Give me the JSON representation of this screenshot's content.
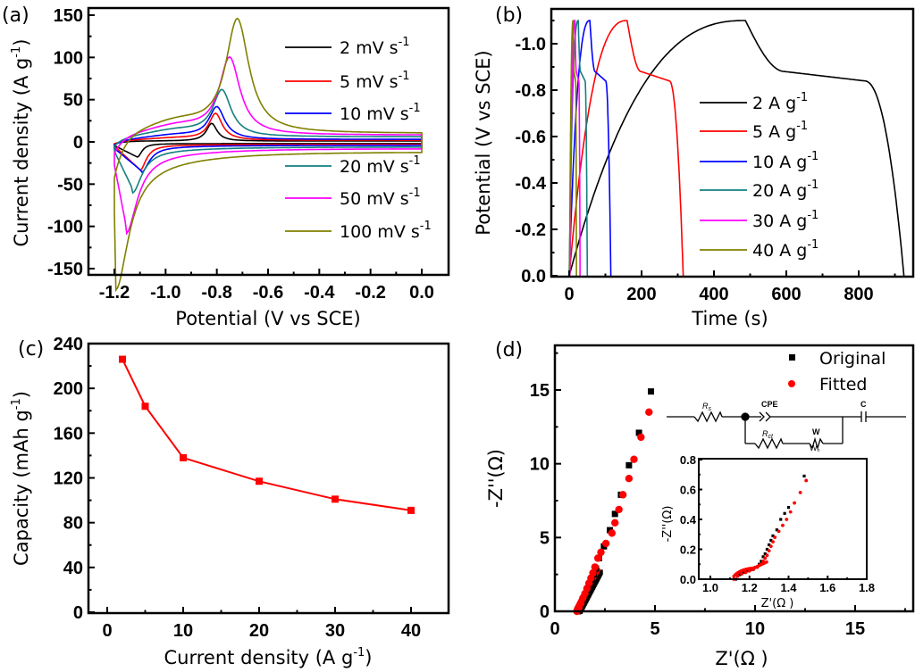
{
  "figure": {
    "panels": [
      "(a)",
      "(b)",
      "(c)",
      "(d)"
    ]
  },
  "chart_data": [
    {
      "id": "a",
      "type": "line",
      "panel_label": "(a)",
      "xlabel": "Potential (V vs  SCE)",
      "ylabel": "Current density (A g⁻¹)",
      "ylabel_main": "Current density (A g",
      "ylabel_sup": "-1",
      "xlim": [
        -1.2,
        0.0
      ],
      "ylim": [
        -150,
        150
      ],
      "xticks": [
        "-1.2",
        "-1.0",
        "-0.8",
        "-0.6",
        "-0.4",
        "-0.2",
        "0.0"
      ],
      "xtick_values": [
        -1.2,
        -1.0,
        -0.8,
        -0.6,
        -0.4,
        -0.2,
        0.0
      ],
      "yticks": [
        "150",
        "100",
        "50",
        "0",
        "-50",
        "-100",
        "-150"
      ],
      "ytick_values": [
        150,
        100,
        50,
        0,
        -50,
        -100,
        -150
      ],
      "legend_position": "right",
      "series": [
        {
          "name": "2 mV s",
          "sup": "-1",
          "color": "#000000",
          "anodic_peak": [
            -0.82,
            22
          ],
          "cathodic_peak": [
            -1.11,
            -18
          ],
          "plateau_anodic": 1,
          "plateau_cathodic": -2,
          "start": -8
        },
        {
          "name": "5 mV s",
          "sup": "-1",
          "color": "#ff0000",
          "anodic_peak": [
            -0.805,
            33
          ],
          "cathodic_peak": [
            -1.1,
            -33
          ],
          "plateau_anodic": 2,
          "plateau_cathodic": -3,
          "start": -9
        },
        {
          "name": "10 mV s",
          "sup": "-1",
          "color": "#0000ff",
          "anodic_peak": [
            -0.8,
            40
          ],
          "cathodic_peak": [
            -1.095,
            -34
          ],
          "plateau_anodic": 3,
          "plateau_cathodic": -4,
          "start": -14
        },
        {
          "name": "20 mV s",
          "sup": "-1",
          "color": "#138080",
          "anodic_peak": [
            -0.78,
            60
          ],
          "cathodic_peak": [
            -1.13,
            -55
          ],
          "plateau_anodic": 6,
          "plateau_cathodic": -6,
          "start": -20
        },
        {
          "name": "50 mV s",
          "sup": "-1",
          "color": "#ff00ff",
          "anodic_peak": [
            -0.75,
            99
          ],
          "cathodic_peak": [
            -1.155,
            -98
          ],
          "plateau_anodic": 8,
          "plateau_cathodic": -8,
          "start": -50
        },
        {
          "name": "100 mV s",
          "sup": "-1",
          "color": "#808000",
          "anodic_peak": [
            -0.72,
            145
          ],
          "cathodic_peak": [
            -1.195,
            -152
          ],
          "plateau_anodic": 10,
          "plateau_cathodic": -12,
          "start": -150
        }
      ]
    },
    {
      "id": "b",
      "type": "line",
      "panel_label": "(b)",
      "xlabel": "Time (s)",
      "ylabel": "Potential (V vs  SCE)",
      "xlim": [
        -40,
        960
      ],
      "ylim": [
        0.0,
        -1.1
      ],
      "xticks": [
        "0",
        "200",
        "400",
        "600",
        "800"
      ],
      "xtick_values": [
        0,
        200,
        400,
        600,
        800
      ],
      "yticks": [
        "-1.0",
        "-0.8",
        "-0.6",
        "-0.4",
        "-0.2",
        "0.0"
      ],
      "ytick_values": [
        -1.0,
        -0.8,
        -0.6,
        -0.4,
        -0.2,
        0.0
      ],
      "legend_position": "center-right",
      "series": [
        {
          "name": "2 A g",
          "sup": "-1",
          "color": "#000000",
          "charge_end_s": 487,
          "discharge_end_s": 925
        },
        {
          "name": "5 A g",
          "sup": "-1",
          "color": "#ff0000",
          "charge_end_s": 160,
          "discharge_end_s": 315
        },
        {
          "name": "10 A g",
          "sup": "-1",
          "color": "#0000ff",
          "charge_end_s": 57,
          "discharge_end_s": 115
        },
        {
          "name": "20 A g",
          "sup": "-1",
          "color": "#138080",
          "charge_end_s": 25,
          "discharge_end_s": 50
        },
        {
          "name": "30 A g",
          "sup": "-1",
          "color": "#ff00ff",
          "charge_end_s": 16,
          "discharge_end_s": 30
        },
        {
          "name": "40 A g",
          "sup": "-1",
          "color": "#808000",
          "charge_end_s": 11,
          "discharge_end_s": 20
        }
      ]
    },
    {
      "id": "c",
      "type": "line",
      "panel_label": "(c)",
      "xlabel_main": "Current density (A g",
      "xlabel_sup": "-1",
      "ylabel_main": "Capacity (mAh g",
      "ylabel_sup": "-1",
      "xlim": [
        -2.5,
        45
      ],
      "ylim": [
        0,
        240
      ],
      "xticks": [
        "0",
        "10",
        "20",
        "30",
        "40"
      ],
      "xtick_values": [
        0,
        10,
        20,
        30,
        40
      ],
      "yticks": [
        "0",
        "40",
        "80",
        "120",
        "160",
        "200",
        "240"
      ],
      "ytick_values": [
        0,
        40,
        80,
        120,
        160,
        200,
        240
      ],
      "color": "#ff0000",
      "x": [
        2,
        5,
        10,
        20,
        30,
        40
      ],
      "y": [
        226,
        184,
        138,
        117,
        101,
        91
      ]
    },
    {
      "id": "d",
      "type": "scatter",
      "panel_label": "(d)",
      "xlabel": "Z'(Ω )",
      "ylabel": "-Z''(Ω)",
      "xlim": [
        0,
        18
      ],
      "ylim": [
        0,
        18
      ],
      "xticks": [
        "0",
        "5",
        "10",
        "15"
      ],
      "xtick_values": [
        0,
        5,
        10,
        15
      ],
      "yticks": [
        "0",
        "5",
        "10",
        "15"
      ],
      "ytick_values": [
        0,
        5,
        10,
        15
      ],
      "legend_position": "top-right",
      "series": [
        {
          "name": "Original",
          "color": "#000000",
          "marker": "square",
          "x": [
            1.15,
            1.25,
            1.35,
            1.45,
            1.55,
            1.65,
            1.75,
            1.85,
            1.95,
            2.05,
            2.2,
            2.45,
            2.75,
            3.0,
            3.3,
            3.7,
            4.2,
            4.8
          ],
          "y": [
            0.0,
            0.2,
            0.45,
            0.75,
            1.05,
            1.4,
            1.75,
            2.1,
            2.5,
            2.9,
            3.6,
            4.4,
            5.5,
            6.6,
            7.9,
            9.9,
            12.1,
            14.9
          ]
        },
        {
          "name": "Fitted",
          "color": "#ff0000",
          "marker": "circle",
          "x": [
            1.1,
            1.2,
            1.3,
            1.4,
            1.5,
            1.6,
            1.7,
            1.8,
            1.9,
            2.0,
            2.15,
            2.3,
            2.55,
            2.85,
            3.0,
            3.2,
            3.4,
            3.7,
            3.95,
            4.3,
            4.7
          ],
          "y": [
            0.0,
            0.25,
            0.55,
            0.9,
            1.2,
            1.55,
            1.9,
            2.25,
            2.6,
            3.0,
            3.6,
            4.0,
            4.6,
            5.3,
            6.0,
            6.9,
            7.9,
            9.0,
            10.3,
            11.8,
            13.5
          ]
        }
      ],
      "inset": {
        "xlabel": "Z'(Ω )",
        "ylabel": "-Z''(Ω)",
        "xlim": [
          1.0,
          1.8
        ],
        "ylim": [
          0.0,
          0.8
        ],
        "xticks": [
          "1.0",
          "1.2",
          "1.4",
          "1.6",
          "1.8"
        ],
        "xtick_values": [
          1.0,
          1.2,
          1.4,
          1.6,
          1.8
        ],
        "yticks": [
          "0.0",
          "0.2",
          "0.4",
          "0.6",
          "0.8"
        ],
        "ytick_values": [
          0.0,
          0.2,
          0.4,
          0.6,
          0.8
        ],
        "original": {
          "x": [
            1.13,
            1.15,
            1.17,
            1.19,
            1.21,
            1.23,
            1.25,
            1.26,
            1.27,
            1.28,
            1.29,
            1.3,
            1.31,
            1.32,
            1.34,
            1.36,
            1.38,
            1.4,
            1.48
          ],
          "y": [
            0.0,
            0.03,
            0.045,
            0.055,
            0.065,
            0.08,
            0.1,
            0.12,
            0.15,
            0.17,
            0.2,
            0.23,
            0.26,
            0.29,
            0.33,
            0.4,
            0.44,
            0.48,
            0.69
          ]
        },
        "fitted": {
          "x": [
            1.12,
            1.14,
            1.16,
            1.18,
            1.2,
            1.22,
            1.24,
            1.26,
            1.27,
            1.28,
            1.29,
            1.3,
            1.31,
            1.32,
            1.33,
            1.35,
            1.37,
            1.39,
            1.41,
            1.43,
            1.46,
            1.49
          ],
          "y": [
            0.0,
            0.02,
            0.035,
            0.045,
            0.055,
            0.065,
            0.08,
            0.1,
            0.12,
            0.14,
            0.16,
            0.19,
            0.22,
            0.25,
            0.28,
            0.32,
            0.36,
            0.4,
            0.45,
            0.51,
            0.58,
            0.66
          ]
        }
      },
      "circuit": {
        "labels": {
          "rs_main": "R",
          "rs_sub": "s",
          "cpe": "CPE",
          "c": "C",
          "rct_main": "R",
          "rct_sub": "ct",
          "w": "W",
          "wo_main": "W",
          "wo_sub": "o"
        }
      }
    }
  ]
}
